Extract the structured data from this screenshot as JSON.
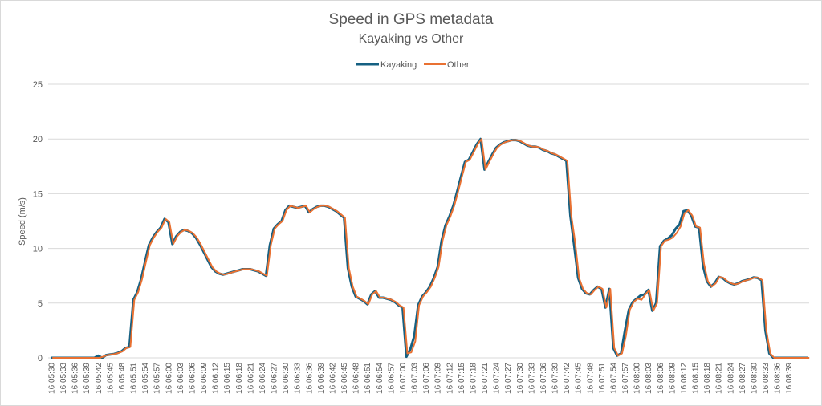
{
  "chart_data": {
    "type": "line",
    "title": "Speed in GPS metadata",
    "subtitle": "Kayaking vs Other",
    "xlabel": "",
    "ylabel": "Speed (m/s)",
    "ylim": [
      0,
      25
    ],
    "yticks": [
      0,
      5,
      10,
      15,
      20,
      25
    ],
    "grid": true,
    "legend": "top",
    "x_tick_every": 3,
    "x": [
      "16:05:30",
      "16:05:31",
      "16:05:32",
      "16:05:33",
      "16:05:34",
      "16:05:35",
      "16:05:36",
      "16:05:37",
      "16:05:38",
      "16:05:39",
      "16:05:40",
      "16:05:41",
      "16:05:42",
      "16:05:43",
      "16:05:44",
      "16:05:45",
      "16:05:46",
      "16:05:47",
      "16:05:48",
      "16:05:49",
      "16:05:50",
      "16:05:51",
      "16:05:52",
      "16:05:53",
      "16:05:54",
      "16:05:55",
      "16:05:56",
      "16:05:57",
      "16:05:58",
      "16:05:59",
      "16:06:00",
      "16:06:01",
      "16:06:02",
      "16:06:03",
      "16:06:04",
      "16:06:05",
      "16:06:06",
      "16:06:07",
      "16:06:08",
      "16:06:09",
      "16:06:10",
      "16:06:11",
      "16:06:12",
      "16:06:13",
      "16:06:14",
      "16:06:15",
      "16:06:16",
      "16:06:17",
      "16:06:18",
      "16:06:19",
      "16:06:20",
      "16:06:21",
      "16:06:22",
      "16:06:23",
      "16:06:24",
      "16:06:25",
      "16:06:26",
      "16:06:27",
      "16:06:28",
      "16:06:29",
      "16:06:30",
      "16:06:31",
      "16:06:32",
      "16:06:33",
      "16:06:34",
      "16:06:35",
      "16:06:36",
      "16:06:37",
      "16:06:38",
      "16:06:39",
      "16:06:40",
      "16:06:41",
      "16:06:42",
      "16:06:43",
      "16:06:44",
      "16:06:45",
      "16:06:46",
      "16:06:47",
      "16:06:48",
      "16:06:49",
      "16:06:50",
      "16:06:51",
      "16:06:52",
      "16:06:53",
      "16:06:54",
      "16:06:55",
      "16:06:56",
      "16:06:57",
      "16:06:58",
      "16:06:59",
      "16:07:00",
      "16:07:01",
      "16:07:02",
      "16:07:03",
      "16:07:04",
      "16:07:05",
      "16:07:06",
      "16:07:07",
      "16:07:08",
      "16:07:09",
      "16:07:10",
      "16:07:11",
      "16:07:12",
      "16:07:13",
      "16:07:14",
      "16:07:15",
      "16:07:16",
      "16:07:17",
      "16:07:18",
      "16:07:19",
      "16:07:20",
      "16:07:21",
      "16:07:22",
      "16:07:23",
      "16:07:24",
      "16:07:25",
      "16:07:26",
      "16:07:27",
      "16:07:28",
      "16:07:29",
      "16:07:30",
      "16:07:31",
      "16:07:32",
      "16:07:33",
      "16:07:34",
      "16:07:35",
      "16:07:36",
      "16:07:37",
      "16:07:38",
      "16:07:39",
      "16:07:40",
      "16:07:41",
      "16:07:42",
      "16:07:43",
      "16:07:44",
      "16:07:45",
      "16:07:46",
      "16:07:47",
      "16:07:48",
      "16:07:49",
      "16:07:50",
      "16:07:51",
      "16:07:52",
      "16:07:53",
      "16:07:54",
      "16:07:55",
      "16:07:56",
      "16:07:57",
      "16:07:58",
      "16:07:59",
      "16:08:00",
      "16:08:01",
      "16:08:02",
      "16:08:03",
      "16:08:04",
      "16:08:05",
      "16:08:06",
      "16:08:07",
      "16:08:08",
      "16:08:09",
      "16:08:10",
      "16:08:11",
      "16:08:12",
      "16:08:13",
      "16:08:14",
      "16:08:15",
      "16:08:16",
      "16:08:17",
      "16:08:18",
      "16:08:19",
      "16:08:20",
      "16:08:21",
      "16:08:22",
      "16:08:23",
      "16:08:24",
      "16:08:25",
      "16:08:26",
      "16:08:27",
      "16:08:28",
      "16:08:29",
      "16:08:30",
      "16:08:31",
      "16:08:32",
      "16:08:33",
      "16:08:34",
      "16:08:35",
      "16:08:36",
      "16:08:37",
      "16:08:38",
      "16:08:39",
      "16:08:40",
      "16:08:41",
      "16:08:42",
      "16:08:43",
      "16:08:44"
    ],
    "series": [
      {
        "name": "Kayaking",
        "color": "#156082",
        "values": [
          0,
          0,
          0,
          0,
          0,
          0,
          0,
          0,
          0,
          0,
          0,
          0,
          0.2,
          0,
          0.25,
          0.3,
          0.35,
          0.45,
          0.6,
          0.9,
          1.0,
          5.3,
          6.0,
          7.2,
          8.8,
          10.3,
          11.0,
          11.5,
          11.9,
          12.7,
          12.4,
          10.4,
          11.1,
          11.5,
          11.7,
          11.6,
          11.4,
          11.0,
          10.4,
          9.7,
          9.0,
          8.3,
          7.9,
          7.7,
          7.6,
          7.7,
          7.8,
          7.9,
          8.0,
          8.1,
          8.1,
          8.1,
          8.0,
          7.9,
          7.7,
          7.5,
          10.3,
          11.8,
          12.2,
          12.5,
          13.5,
          13.9,
          13.8,
          13.7,
          13.8,
          13.9,
          13.3,
          13.6,
          13.8,
          13.9,
          13.9,
          13.8,
          13.6,
          13.4,
          13.1,
          12.8,
          8.2,
          6.5,
          5.6,
          5.4,
          5.2,
          4.9,
          5.8,
          6.1,
          5.5,
          5.5,
          5.4,
          5.3,
          5.1,
          4.8,
          4.6,
          0.1,
          0.8,
          2.0,
          4.8,
          5.6,
          6.0,
          6.5,
          7.3,
          8.3,
          10.7,
          12.1,
          12.9,
          13.9,
          15.2,
          16.6,
          17.9,
          18.1,
          18.8,
          19.5,
          20.0,
          17.2,
          17.9,
          18.6,
          19.2,
          19.5,
          19.7,
          19.8,
          19.9,
          19.9,
          19.8,
          19.6,
          19.4,
          19.3,
          19.3,
          19.2,
          19.0,
          18.9,
          18.7,
          18.6,
          18.4,
          18.2,
          18.0,
          13.0,
          10.2,
          7.3,
          6.3,
          5.9,
          5.8,
          6.2,
          6.5,
          6.3,
          4.6,
          6.3,
          0.9,
          0.2,
          0.4,
          2.5,
          4.4,
          5.1,
          5.4,
          5.7,
          5.8,
          6.2,
          4.3,
          5.0,
          10.2,
          10.7,
          10.9,
          11.2,
          11.8,
          12.2,
          13.4,
          13.5,
          13.0,
          12.0,
          11.9,
          8.4,
          7.0,
          6.5,
          6.8,
          7.4,
          7.3,
          7.0,
          6.8,
          6.7,
          6.8,
          7.0,
          7.1,
          7.2,
          7.35,
          7.3,
          7.1,
          2.5,
          0.4,
          0,
          0,
          0,
          0,
          0,
          0,
          0,
          0,
          0,
          0
        ]
      },
      {
        "name": "Other",
        "color": "#e97132",
        "values": [
          0,
          0,
          0,
          0,
          0,
          0,
          0,
          0,
          0,
          0,
          0,
          0,
          0,
          0.1,
          0.25,
          0.3,
          0.35,
          0.45,
          0.6,
          0.9,
          1.0,
          5.3,
          6.0,
          7.2,
          8.8,
          10.3,
          11.0,
          11.5,
          11.9,
          12.7,
          12.4,
          10.4,
          11.1,
          11.5,
          11.7,
          11.6,
          11.4,
          11.0,
          10.4,
          9.7,
          9.0,
          8.3,
          7.9,
          7.7,
          7.6,
          7.7,
          7.8,
          7.9,
          8.0,
          8.1,
          8.1,
          8.1,
          8.0,
          7.9,
          7.7,
          7.5,
          10.3,
          11.8,
          12.2,
          12.5,
          13.5,
          13.9,
          13.8,
          13.7,
          13.8,
          13.9,
          13.3,
          13.6,
          13.8,
          13.9,
          13.9,
          13.8,
          13.6,
          13.4,
          13.1,
          12.8,
          8.2,
          6.5,
          5.6,
          5.4,
          5.2,
          4.9,
          5.8,
          6.1,
          5.5,
          5.5,
          5.4,
          5.3,
          5.1,
          4.8,
          4.6,
          0.4,
          0.5,
          1.5,
          4.8,
          5.6,
          6.0,
          6.5,
          7.3,
          8.3,
          10.7,
          12.1,
          12.9,
          13.9,
          15.2,
          16.6,
          17.9,
          18.1,
          18.8,
          19.5,
          20.0,
          17.2,
          17.9,
          18.6,
          19.2,
          19.5,
          19.7,
          19.8,
          19.9,
          19.9,
          19.8,
          19.6,
          19.4,
          19.3,
          19.3,
          19.2,
          19.0,
          18.9,
          18.7,
          18.6,
          18.4,
          18.2,
          18.0,
          13.0,
          10.5,
          7.3,
          6.3,
          5.9,
          5.8,
          6.2,
          6.5,
          6.3,
          4.6,
          6.3,
          0.9,
          0.2,
          0.4,
          2.0,
          4.4,
          5.1,
          5.4,
          5.3,
          5.8,
          6.2,
          4.3,
          5.0,
          10.2,
          10.7,
          10.8,
          11.0,
          11.4,
          12.0,
          13.2,
          13.5,
          13.0,
          12.0,
          11.9,
          8.6,
          7.0,
          6.5,
          6.8,
          7.4,
          7.3,
          7.0,
          6.8,
          6.7,
          6.8,
          7.0,
          7.1,
          7.2,
          7.35,
          7.3,
          7.1,
          2.5,
          0.4,
          0,
          0,
          0,
          0,
          0,
          0,
          0,
          0,
          0,
          0
        ]
      }
    ]
  }
}
